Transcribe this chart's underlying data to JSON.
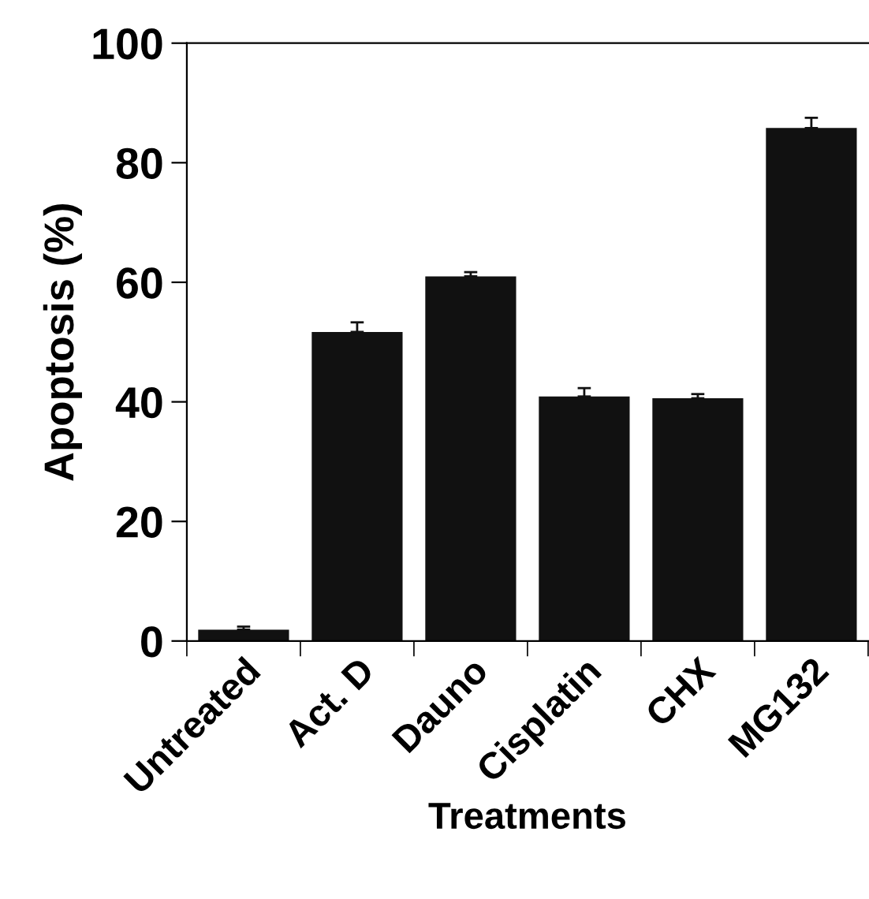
{
  "chart_data": {
    "type": "bar",
    "xlabel": "Treatments",
    "ylabel": "Apoptosis (%)",
    "categories": [
      "Untreated",
      "Act. D",
      "Dauno",
      "Cisplatin",
      "CHX",
      "MG132"
    ],
    "values": [
      1.9,
      51.7,
      61.0,
      40.9,
      40.6,
      85.8
    ],
    "errors": [
      0.5,
      1.6,
      0.7,
      1.4,
      0.7,
      1.7
    ],
    "color": "#111111",
    "ylim": [
      0,
      100
    ],
    "yticks": [
      0,
      20,
      40,
      60,
      80,
      100
    ],
    "grid": false,
    "legend": false
  }
}
